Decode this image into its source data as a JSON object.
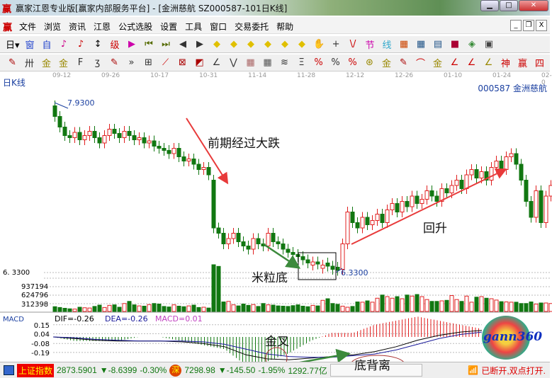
{
  "window": {
    "title": "赢家江恩专业版[赢家内部服务平台] - [金洲慈航  SZ000587-101日K线]",
    "logo": "赢"
  },
  "menu": {
    "logo": "赢",
    "items": [
      "文件",
      "浏览",
      "资讯",
      "江恩",
      "公式选股",
      "设置",
      "工具",
      "窗口",
      "交易委托",
      "帮助"
    ]
  },
  "toolbar1": [
    {
      "icon": "period-dropdown",
      "g": "日▾",
      "c": "#000"
    },
    {
      "icon": "window-icon",
      "g": "窗",
      "c": "#2244cc"
    },
    {
      "icon": "self-select-icon",
      "g": "自",
      "c": "#2244cc"
    },
    {
      "icon": "kline-5-icon",
      "g": "♪",
      "c": "#cc0088"
    },
    {
      "icon": "kline-9-icon",
      "g": "♪",
      "c": "#cc0000"
    },
    {
      "icon": "candle-dropdown",
      "g": "↕",
      "c": "#000"
    },
    {
      "icon": "indicator-icon",
      "g": "级",
      "c": "#cc0000"
    },
    {
      "icon": "flag-icon",
      "g": "▶",
      "c": "#cc00aa"
    },
    {
      "icon": "first-icon",
      "g": "⏮",
      "c": "#556b00"
    },
    {
      "icon": "last-icon",
      "g": "⏭",
      "c": "#556b00"
    },
    {
      "icon": "left-icon",
      "g": "◀",
      "c": "#333"
    },
    {
      "icon": "right-icon",
      "g": "▶",
      "c": "#333"
    },
    {
      "icon": "diamond-left-icon",
      "g": "◆",
      "c": "#e0c000"
    },
    {
      "icon": "diamond-right-icon",
      "g": "◆",
      "c": "#e0c000"
    },
    {
      "icon": "diamond-expand-icon",
      "g": "◆",
      "c": "#e0c000"
    },
    {
      "icon": "diamond-shrink-icon",
      "g": "◆",
      "c": "#e0c000"
    },
    {
      "icon": "diamond-up-icon",
      "g": "◆",
      "c": "#e0c000"
    },
    {
      "icon": "diamond-down-icon",
      "g": "◆",
      "c": "#e0c000"
    },
    {
      "icon": "hand-icon",
      "g": "✋",
      "c": "#333"
    },
    {
      "icon": "crosshair-icon",
      "g": "+",
      "c": "#333"
    },
    {
      "icon": "line-icon",
      "g": "\\/",
      "c": "#cc0000"
    },
    {
      "icon": "festival-icon",
      "g": "节",
      "c": "#cc00aa"
    },
    {
      "icon": "line-style-icon",
      "g": "线",
      "c": "#33aacc"
    },
    {
      "icon": "calendar-icon",
      "g": "▦",
      "c": "#cc4400"
    },
    {
      "icon": "calculator-icon",
      "g": "▦",
      "c": "#225588"
    },
    {
      "icon": "notes-icon",
      "g": "▤",
      "c": "#225588"
    },
    {
      "icon": "save-icon",
      "g": "■",
      "c": "#aa0033"
    },
    {
      "icon": "network-icon",
      "g": "◈",
      "c": "#338833"
    },
    {
      "icon": "trade-icon",
      "g": "▣",
      "c": "#444"
    }
  ],
  "toolbar2": [
    {
      "icon": "pen-icon",
      "g": "✎",
      "c": "#aa0000"
    },
    {
      "icon": "parallel-icon",
      "g": "卅",
      "c": "#333"
    },
    {
      "icon": "gold-1-icon",
      "g": "金",
      "c": "#998800"
    },
    {
      "icon": "gold-2-icon",
      "g": "金",
      "c": "#998800"
    },
    {
      "icon": "fib-icon",
      "g": "F",
      "c": "#333"
    },
    {
      "icon": "spiral-icon",
      "g": "ʒ",
      "c": "#333"
    },
    {
      "icon": "pen2-icon",
      "g": "✎",
      "c": "#aa0000"
    },
    {
      "icon": "more-icon",
      "g": "»",
      "c": "#333"
    },
    {
      "icon": "box-icon",
      "g": "⊞",
      "c": "#333"
    },
    {
      "icon": "fan-icon",
      "g": "⟋",
      "c": "#cc0000"
    },
    {
      "icon": "gann-box-icon",
      "g": "⊠",
      "c": "#aa0000"
    },
    {
      "icon": "gann-fan-icon",
      "g": "◩",
      "c": "#aa0000"
    },
    {
      "icon": "angle-icon",
      "g": "∠",
      "c": "#333"
    },
    {
      "icon": "wave-icon",
      "g": "⋁",
      "c": "#333"
    },
    {
      "icon": "grid-icon",
      "g": "▦",
      "c": "#aa6666"
    },
    {
      "icon": "grid2-icon",
      "g": "▦",
      "c": "#555"
    },
    {
      "icon": "multi-line-icon",
      "g": "≋",
      "c": "#333"
    },
    {
      "icon": "ruler-icon",
      "g": "Ξ",
      "c": "#333"
    },
    {
      "icon": "percent-fan-icon",
      "g": "%",
      "c": "#cc0000"
    },
    {
      "icon": "percent-icon",
      "g": "%",
      "c": "#333"
    },
    {
      "icon": "percent-line-icon",
      "g": "%",
      "c": "#cc0000"
    },
    {
      "icon": "gold-circle-icon",
      "g": "⊛",
      "c": "#998800"
    },
    {
      "icon": "gold-line-icon",
      "g": "金",
      "c": "#998800"
    },
    {
      "icon": "pen3-icon",
      "g": "✎",
      "c": "#aa0000"
    },
    {
      "icon": "arc-icon",
      "g": "⌒",
      "c": "#cc0000"
    },
    {
      "icon": "gold3-icon",
      "g": "金",
      "c": "#998800"
    },
    {
      "icon": "j-angle-icon",
      "g": "∠",
      "c": "#cc0000"
    },
    {
      "icon": "f-angle-icon",
      "g": "∠",
      "c": "#cc0000"
    },
    {
      "icon": "gold-angle-icon",
      "g": "∠",
      "c": "#998800"
    },
    {
      "icon": "god-icon",
      "g": "神",
      "c": "#cc0000"
    },
    {
      "icon": "win-icon",
      "g": "赢",
      "c": "#cc0000"
    },
    {
      "icon": "four-icon",
      "g": "四",
      "c": "#cc0000"
    }
  ],
  "chart": {
    "title": "日K线",
    "stock": "000587  金洲慈航",
    "dates": [
      "09-12",
      "09-26",
      "10-17",
      "10-31",
      "11-14",
      "11-28",
      "12-12",
      "12-26",
      "01-10",
      "01-24",
      "02-0"
    ],
    "high_label": "7.9300",
    "low_label": "6.3300",
    "left_low_label": "6. 3300",
    "vol_labels": [
      "937194",
      "624796",
      "312398"
    ],
    "closes": [
      7.8,
      7.7,
      7.62,
      7.6,
      7.65,
      7.58,
      7.62,
      7.66,
      7.6,
      7.55,
      7.62,
      7.68,
      7.64,
      7.6,
      7.66,
      7.62,
      7.58,
      7.6,
      7.55,
      7.57,
      7.52,
      7.5,
      7.48,
      7.45,
      7.5,
      7.42,
      7.38,
      7.4,
      7.35,
      7.3,
      7.32,
      7.25,
      6.75,
      6.7,
      6.6,
      6.65,
      6.7,
      6.62,
      6.58,
      6.55,
      6.65,
      6.6,
      6.58,
      6.7,
      6.62,
      6.6,
      6.55,
      6.52,
      6.5,
      6.48,
      6.45,
      6.42,
      6.43,
      6.41,
      6.4,
      6.39,
      6.36,
      6.35,
      6.6,
      6.9,
      6.8,
      6.75,
      6.85,
      6.78,
      6.82,
      6.88,
      6.8,
      6.92,
      6.98,
      6.9,
      7.0,
      6.95,
      7.05,
      6.98,
      7.02,
      7.1,
      7.05,
      7.0,
      7.12,
      7.08,
      7.15,
      7.2,
      7.12,
      7.25,
      7.3,
      7.22,
      7.28,
      7.2,
      7.32,
      7.38,
      7.3,
      7.42,
      7.45,
      7.35,
      7.2,
      7.0,
      6.85,
      7.1,
      6.8,
      7.05,
      7.15
    ],
    "volumes": [
      180000,
      150000,
      120000,
      100000,
      90000,
      160000,
      140000,
      130000,
      190000,
      240000,
      150000,
      230000,
      250000,
      160000,
      300000,
      380000,
      250000,
      210000,
      200000,
      260000,
      300000,
      280000,
      190000,
      170000,
      250000,
      200000,
      180000,
      210000,
      240000,
      150000,
      160000,
      130000,
      2200000,
      1700000,
      360000,
      380000,
      250000,
      210000,
      280000,
      230000,
      260000,
      190000,
      300000,
      250000,
      240000,
      210000,
      200000,
      190000,
      220000,
      250000,
      200000,
      180000,
      230000,
      210000,
      420000,
      480000,
      300000,
      270000,
      200000,
      160000,
      190000,
      360000,
      350000,
      400000,
      350000,
      500000,
      620000,
      560000,
      500000,
      560000,
      480000,
      620000,
      580000,
      640000,
      560000,
      450000,
      380000,
      380000,
      400000,
      420000,
      600000,
      450000,
      380000,
      580000,
      350000,
      540000,
      560000,
      500000,
      480000,
      430000,
      370000,
      360000,
      350000,
      350000,
      300000,
      300000,
      360000,
      280000,
      320000,
      320000,
      300000
    ],
    "price_range": [
      6.33,
      7.93
    ]
  },
  "annotations": {
    "drop": "前期经过大跌",
    "rice": "米粒底",
    "rebound": "回升",
    "golden_cross": "金叉",
    "divergence": "底背离",
    "arrow_red": "#e83a3a",
    "arrow_green": "#3c8a3c"
  },
  "macd": {
    "label": "MACD",
    "dif": "DIF=-0.26",
    "dea": "DEA=-0.26",
    "macd": "MACD=0.01",
    "ticks": [
      "0.15",
      "0.04",
      "-0.08",
      "-0.19"
    ],
    "dif_series": [
      0.0,
      -0.02,
      -0.04,
      -0.05,
      -0.05,
      -0.05,
      -0.06,
      -0.08,
      -0.12,
      -0.22,
      -0.27,
      -0.28,
      -0.26,
      -0.24,
      -0.22,
      -0.18,
      -0.12,
      -0.04,
      0.02,
      0.06,
      0.08
    ],
    "dea_series": [
      0.0,
      -0.01,
      -0.03,
      -0.04,
      -0.05,
      -0.05,
      -0.05,
      -0.06,
      -0.09,
      -0.15,
      -0.21,
      -0.24,
      -0.25,
      -0.25,
      -0.23,
      -0.21,
      -0.16,
      -0.09,
      -0.02,
      0.03,
      0.06
    ]
  },
  "logo": {
    "text": "gann360"
  },
  "status": {
    "index_name": "上证指数",
    "index_value": "2873.5901",
    "index_change": "▼-8.6399",
    "index_pct": "-0.30%",
    "sz_badge": "深",
    "sz_value": "7298.98",
    "sz_change": "▼-145.50",
    "sz_pct": "-1.95%",
    "turnover": "1292.77亿",
    "conn": "已断开,双点打开."
  },
  "colors": {
    "up": "#e02020",
    "down": "#117711",
    "dif": "#000000",
    "dea": "#1a1a9a",
    "macd_label": "#c040c0"
  }
}
